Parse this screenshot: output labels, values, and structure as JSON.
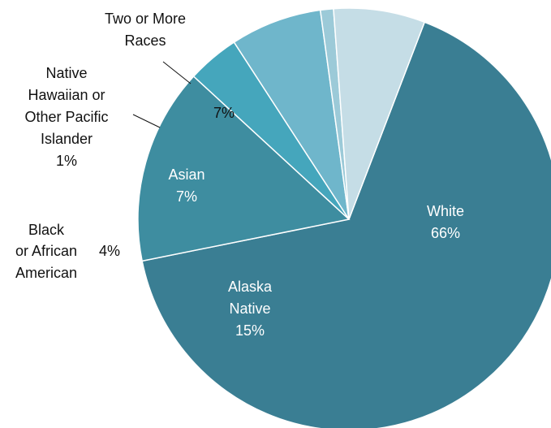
{
  "chart_data": {
    "type": "pie",
    "title": "",
    "slices": [
      {
        "name": "White",
        "value": 66,
        "value_label": "66%",
        "color": "#3a7e93"
      },
      {
        "name": "Alaska Native",
        "value": 15,
        "value_label": "15%",
        "color": "#3e8da0"
      },
      {
        "name": "Black or African American",
        "value": 4,
        "value_label": "4%",
        "color": "#45a6bc"
      },
      {
        "name": "Asian",
        "value": 7,
        "value_label": "7%",
        "color": "#6fb6cb"
      },
      {
        "name": "Native Hawaiian or Other Pacific Islander",
        "value": 1,
        "value_label": "1%",
        "color": "#9ccad8"
      },
      {
        "name": "Two or More Races",
        "value": 7,
        "value_label": "7%",
        "color": "#c5dde6"
      }
    ],
    "labels": {
      "white_name": "White",
      "white_pct": "66%",
      "alaska_l1": "Alaska",
      "alaska_l2": "Native",
      "alaska_pct": "15%",
      "black_l1": "Black",
      "black_l2": "or African",
      "black_l3": "American",
      "black_pct": "4%",
      "asian_name": "Asian",
      "asian_pct": "7%",
      "nhpi_l1": "Native",
      "nhpi_l2": "Hawaiian or",
      "nhpi_l3": "Other Pacific",
      "nhpi_l4": "Islander",
      "nhpi_pct": "1%",
      "two_l1": "Two or More",
      "two_l2": "Races",
      "two_pct": "7%"
    }
  }
}
